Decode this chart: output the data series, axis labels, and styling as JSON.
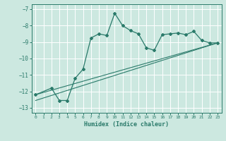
{
  "xlabel": "Humidex (Indice chaleur)",
  "bg_color": "#cce8e0",
  "grid_color": "#ffffff",
  "line_color": "#2a7a6a",
  "xlim": [
    -0.5,
    23.5
  ],
  "ylim": [
    -13.3,
    -6.7
  ],
  "yticks": [
    -13,
    -12,
    -11,
    -10,
    -9,
    -8,
    -7
  ],
  "xticks": [
    0,
    1,
    2,
    3,
    4,
    5,
    6,
    7,
    8,
    9,
    10,
    11,
    12,
    13,
    14,
    15,
    16,
    17,
    18,
    19,
    20,
    21,
    22,
    23
  ],
  "line1_x": [
    0,
    2,
    3,
    4,
    5,
    6,
    7,
    8,
    9,
    10,
    11,
    12,
    13,
    14,
    15,
    16,
    17,
    18,
    19,
    20,
    21,
    22,
    23
  ],
  "line1_y": [
    -12.2,
    -11.8,
    -12.55,
    -12.55,
    -11.2,
    -10.65,
    -8.75,
    -8.5,
    -8.6,
    -7.25,
    -8.0,
    -8.3,
    -8.5,
    -9.35,
    -9.5,
    -8.55,
    -8.5,
    -8.45,
    -8.55,
    -8.35,
    -8.9,
    -9.05,
    -9.05
  ],
  "line2_x": [
    0,
    23
  ],
  "line2_y": [
    -12.2,
    -9.05
  ],
  "line3_x": [
    0,
    23
  ],
  "line3_y": [
    -12.55,
    -9.05
  ]
}
